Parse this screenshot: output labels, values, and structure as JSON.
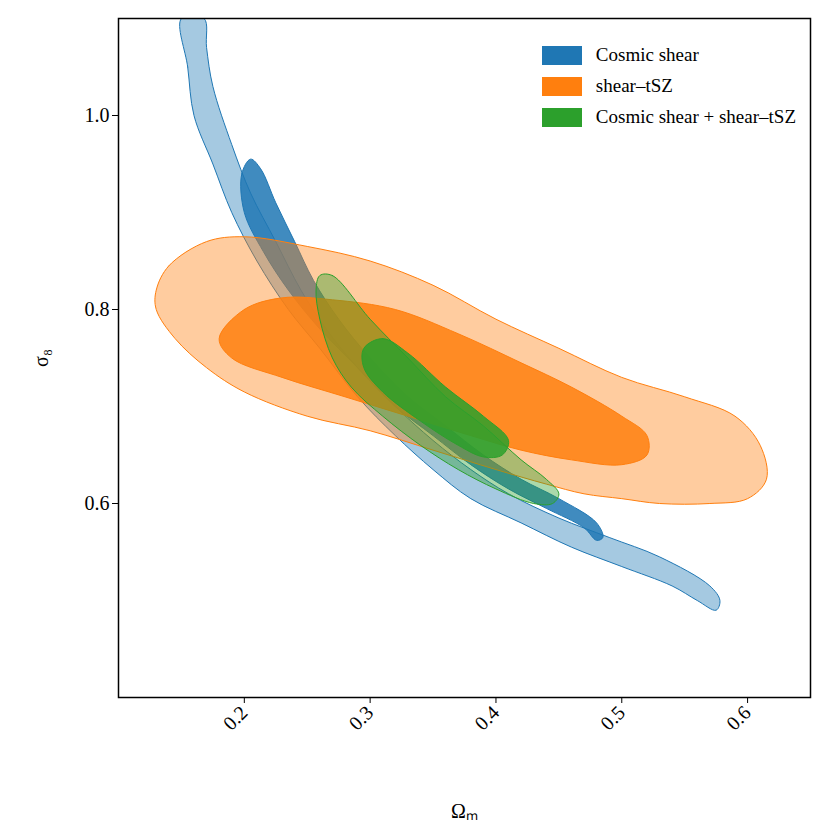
{
  "chart_data": {
    "type": "contour",
    "x_label": "Ωₘ",
    "y_label": "σ₈",
    "xlim": [
      0.1,
      0.65
    ],
    "ylim": [
      0.4,
      1.1
    ],
    "xticks": [
      0.2,
      0.3,
      0.4,
      0.5,
      0.6
    ],
    "yticks": [
      0.6,
      0.8,
      {
        "value": 1,
        "label": "1.0"
      }
    ],
    "legend": "upper right",
    "series": [
      {
        "name": "Cosmic shear",
        "color": "#1f77b4",
        "outer": [
          [
            0.15,
            1.1
          ],
          [
            0.155,
            1.05
          ],
          [
            0.16,
            1.0
          ],
          [
            0.175,
            0.95
          ],
          [
            0.19,
            0.9
          ],
          [
            0.21,
            0.85
          ],
          [
            0.235,
            0.8
          ],
          [
            0.26,
            0.76
          ],
          [
            0.29,
            0.71
          ],
          [
            0.32,
            0.67
          ],
          [
            0.35,
            0.635
          ],
          [
            0.38,
            0.605
          ],
          [
            0.42,
            0.58
          ],
          [
            0.46,
            0.555
          ],
          [
            0.5,
            0.535
          ],
          [
            0.54,
            0.515
          ],
          [
            0.56,
            0.5
          ],
          [
            0.575,
            0.49
          ],
          [
            0.578,
            0.5
          ],
          [
            0.57,
            0.515
          ],
          [
            0.53,
            0.545
          ],
          [
            0.49,
            0.565
          ],
          [
            0.45,
            0.585
          ],
          [
            0.41,
            0.61
          ],
          [
            0.38,
            0.635
          ],
          [
            0.35,
            0.665
          ],
          [
            0.32,
            0.7
          ],
          [
            0.29,
            0.74
          ],
          [
            0.265,
            0.78
          ],
          [
            0.245,
            0.82
          ],
          [
            0.225,
            0.87
          ],
          [
            0.205,
            0.92
          ],
          [
            0.19,
            0.97
          ],
          [
            0.175,
            1.03
          ],
          [
            0.17,
            1.07
          ],
          [
            0.168,
            1.1
          ]
        ],
        "inner": [
          [
            0.205,
            0.955
          ],
          [
            0.198,
            0.94
          ],
          [
            0.2,
            0.9
          ],
          [
            0.215,
            0.86
          ],
          [
            0.235,
            0.82
          ],
          [
            0.26,
            0.78
          ],
          [
            0.29,
            0.74
          ],
          [
            0.32,
            0.7
          ],
          [
            0.35,
            0.67
          ],
          [
            0.38,
            0.64
          ],
          [
            0.41,
            0.615
          ],
          [
            0.44,
            0.595
          ],
          [
            0.47,
            0.575
          ],
          [
            0.48,
            0.562
          ],
          [
            0.485,
            0.565
          ],
          [
            0.48,
            0.58
          ],
          [
            0.45,
            0.605
          ],
          [
            0.42,
            0.625
          ],
          [
            0.39,
            0.65
          ],
          [
            0.36,
            0.68
          ],
          [
            0.33,
            0.71
          ],
          [
            0.3,
            0.75
          ],
          [
            0.275,
            0.79
          ],
          [
            0.255,
            0.83
          ],
          [
            0.24,
            0.87
          ],
          [
            0.225,
            0.91
          ],
          [
            0.213,
            0.945
          ]
        ]
      },
      {
        "name": "shear–tSZ",
        "color": "#ff7f0e",
        "outer": [
          [
            0.13,
            0.82
          ],
          [
            0.14,
            0.845
          ],
          [
            0.17,
            0.87
          ],
          [
            0.2,
            0.875
          ],
          [
            0.25,
            0.865
          ],
          [
            0.3,
            0.85
          ],
          [
            0.35,
            0.825
          ],
          [
            0.4,
            0.79
          ],
          [
            0.45,
            0.76
          ],
          [
            0.5,
            0.73
          ],
          [
            0.55,
            0.71
          ],
          [
            0.59,
            0.69
          ],
          [
            0.61,
            0.66
          ],
          [
            0.615,
            0.625
          ],
          [
            0.6,
            0.605
          ],
          [
            0.57,
            0.6
          ],
          [
            0.53,
            0.6
          ],
          [
            0.5,
            0.605
          ],
          [
            0.47,
            0.61
          ],
          [
            0.44,
            0.62
          ],
          [
            0.4,
            0.635
          ],
          [
            0.35,
            0.655
          ],
          [
            0.3,
            0.675
          ],
          [
            0.25,
            0.69
          ],
          [
            0.2,
            0.715
          ],
          [
            0.17,
            0.74
          ],
          [
            0.145,
            0.77
          ],
          [
            0.13,
            0.8
          ]
        ],
        "inner": [
          [
            0.18,
            0.77
          ],
          [
            0.2,
            0.8
          ],
          [
            0.23,
            0.812
          ],
          [
            0.27,
            0.81
          ],
          [
            0.32,
            0.8
          ],
          [
            0.37,
            0.775
          ],
          [
            0.42,
            0.745
          ],
          [
            0.46,
            0.72
          ],
          [
            0.5,
            0.69
          ],
          [
            0.52,
            0.67
          ],
          [
            0.52,
            0.65
          ],
          [
            0.5,
            0.64
          ],
          [
            0.46,
            0.645
          ],
          [
            0.42,
            0.655
          ],
          [
            0.38,
            0.67
          ],
          [
            0.33,
            0.69
          ],
          [
            0.28,
            0.71
          ],
          [
            0.23,
            0.73
          ],
          [
            0.19,
            0.75
          ]
        ]
      },
      {
        "name": "Cosmic shear + shear–tSZ",
        "color": "#2ca02c",
        "outer": [
          [
            0.26,
            0.835
          ],
          [
            0.27,
            0.835
          ],
          [
            0.3,
            0.79
          ],
          [
            0.33,
            0.75
          ],
          [
            0.36,
            0.71
          ],
          [
            0.39,
            0.68
          ],
          [
            0.42,
            0.645
          ],
          [
            0.44,
            0.625
          ],
          [
            0.45,
            0.61
          ],
          [
            0.445,
            0.6
          ],
          [
            0.43,
            0.6
          ],
          [
            0.4,
            0.615
          ],
          [
            0.37,
            0.635
          ],
          [
            0.34,
            0.66
          ],
          [
            0.31,
            0.69
          ],
          [
            0.285,
            0.72
          ],
          [
            0.27,
            0.75
          ],
          [
            0.26,
            0.79
          ],
          [
            0.257,
            0.82
          ]
        ],
        "inner": [
          [
            0.295,
            0.76
          ],
          [
            0.31,
            0.77
          ],
          [
            0.33,
            0.755
          ],
          [
            0.36,
            0.72
          ],
          [
            0.39,
            0.69
          ],
          [
            0.41,
            0.665
          ],
          [
            0.405,
            0.65
          ],
          [
            0.39,
            0.648
          ],
          [
            0.37,
            0.66
          ],
          [
            0.34,
            0.685
          ],
          [
            0.31,
            0.715
          ],
          [
            0.295,
            0.74
          ]
        ]
      }
    ]
  }
}
